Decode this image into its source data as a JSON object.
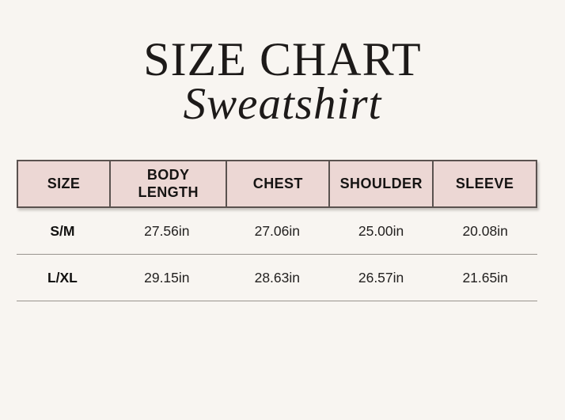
{
  "theme": {
    "page_bg": "#f8f5f1",
    "header_bg": "#ecd7d4",
    "header_border": "#5a524f",
    "divider": "#98938e",
    "ink": "#1d1a19"
  },
  "title": {
    "main": "SIZE CHART",
    "script": "Sweatshirt"
  },
  "size_chart": {
    "columns": [
      "SIZE",
      "BODY LENGTH",
      "CHEST",
      "SHOULDER",
      "SLEEVE"
    ],
    "rows": [
      {
        "size": "S/M",
        "body_length": "27.56in",
        "chest": "27.06in",
        "shoulder": "25.00in",
        "sleeve": "20.08in"
      },
      {
        "size": "L/XL",
        "body_length": "29.15in",
        "chest": "28.63in",
        "shoulder": "26.57in",
        "sleeve": "21.65in"
      }
    ]
  }
}
